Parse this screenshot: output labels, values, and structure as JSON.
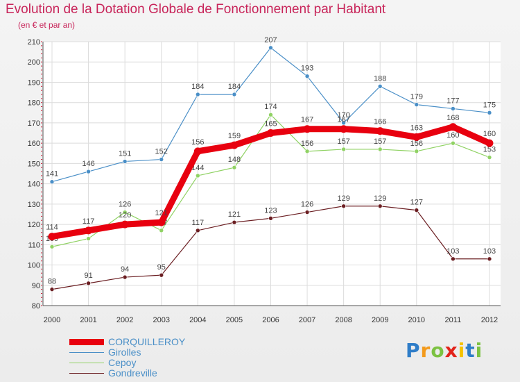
{
  "chart_data": {
    "type": "line",
    "title": "Evolution de la Dotation Globale de Fonctionnement par Habitant",
    "subtitle": "(en € et par an)",
    "categories": [
      "2000",
      "2001",
      "2002",
      "2003",
      "2004",
      "2005",
      "2006",
      "2007",
      "2008",
      "2009",
      "2010",
      "2011",
      "2012"
    ],
    "ylim": [
      80,
      210
    ],
    "yticks": [
      80,
      90,
      100,
      110,
      120,
      130,
      140,
      150,
      160,
      170,
      180,
      190,
      200,
      210
    ],
    "grid": true,
    "series": [
      {
        "name": "Gondreville",
        "color": "#6b1e22",
        "values": [
          88,
          91,
          94,
          95,
          117,
          121,
          123,
          126,
          129,
          129,
          127,
          103,
          103
        ]
      },
      {
        "name": "Cepoy",
        "color": "#90d264",
        "values": [
          109,
          113,
          126,
          117,
          144,
          148,
          174,
          156,
          157,
          157,
          156,
          160,
          153
        ]
      },
      {
        "name": "Girolles",
        "color": "#4a8fc7",
        "values": [
          141,
          146,
          151,
          152,
          184,
          184,
          207,
          193,
          170,
          188,
          179,
          177,
          175
        ]
      },
      {
        "name": "CORQUILLEROY",
        "color": "#e8000f",
        "values": [
          114,
          117,
          120,
          121,
          156,
          159,
          165,
          167,
          167,
          166,
          163,
          168,
          160
        ]
      }
    ]
  },
  "legend": {
    "items": [
      {
        "name": "CORQUILLEROY",
        "color": "#e8000f"
      },
      {
        "name": "Girolles",
        "color": "#4a8fc7"
      },
      {
        "name": "Cepoy",
        "color": "#90d264"
      },
      {
        "name": "Gondreville",
        "color": "#6b1e22"
      }
    ]
  },
  "logo": {
    "text": "Proxiti",
    "colors": [
      "#2f7dc8",
      "#f39a1c",
      "#7cc242",
      "#e2231a",
      "#f6c200",
      "#2f7dc8",
      "#7cc242"
    ]
  }
}
